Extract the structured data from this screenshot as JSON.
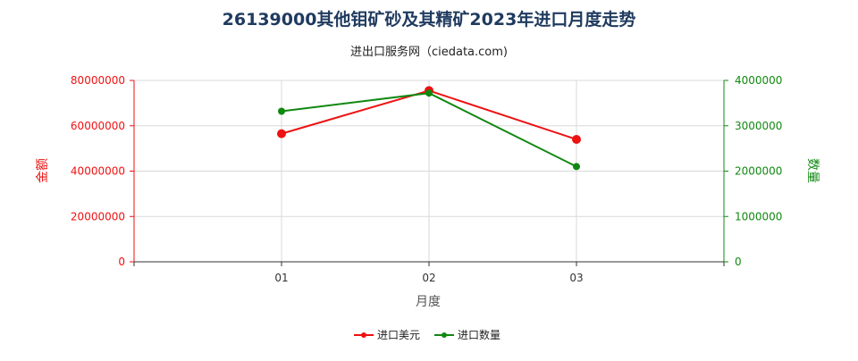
{
  "chart_data": {
    "type": "line",
    "title": "26139000其他钼矿砂及其精矿2023年进口月度走势",
    "subtitle": "进出口服务网（ciedata.com)",
    "xlabel": "月度",
    "ylabel_left": "金额",
    "ylabel_right": "数量",
    "categories": [
      "01",
      "02",
      "03"
    ],
    "y_left": {
      "range": [
        0,
        80000000
      ],
      "ticks": [
        "0",
        "20000000",
        "40000000",
        "60000000",
        "80000000"
      ]
    },
    "y_right": {
      "range": [
        0,
        4000000
      ],
      "ticks": [
        "0",
        "1000000",
        "2000000",
        "3000000",
        "4000000"
      ]
    },
    "series": [
      {
        "name": "进口美元",
        "axis": "left",
        "color": "#ee1111",
        "values": [
          56500000,
          75500000,
          54000000
        ]
      },
      {
        "name": "进口数量",
        "axis": "right",
        "color": "#118811",
        "values": [
          3320000,
          3720000,
          2100000
        ]
      }
    ],
    "grid": true,
    "legend_position": "bottom"
  }
}
